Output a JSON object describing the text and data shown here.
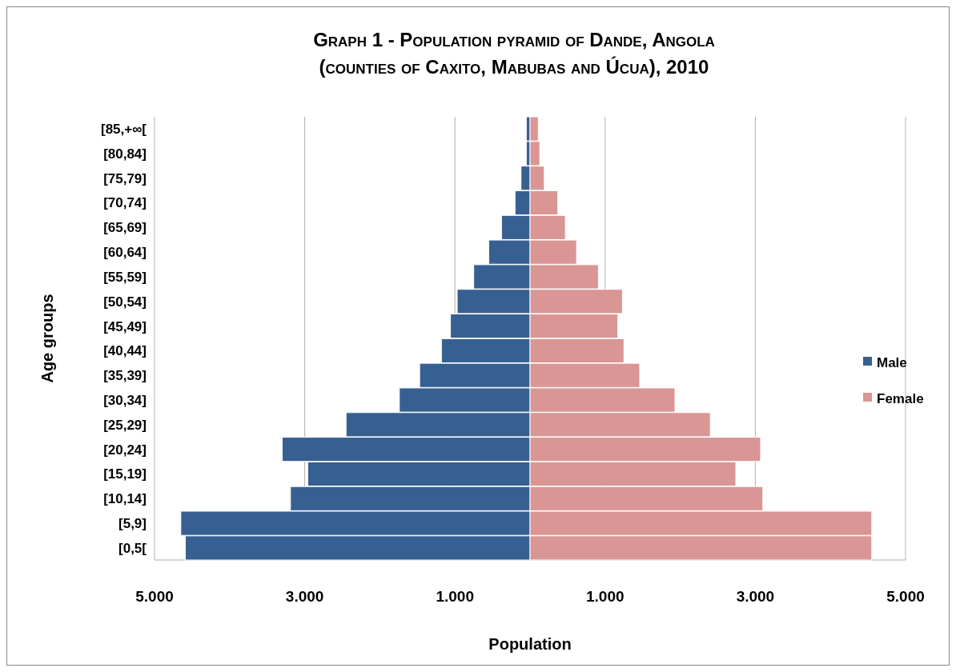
{
  "chart_data": {
    "type": "bar",
    "orientation": "horizontal",
    "stacked": true,
    "title": "Graph 1 - Population pyramid of Dande, Angola\n(counties of Caxito, Mabubas and Úcua), 2010",
    "xlabel": "Population",
    "ylabel": "Age groups",
    "categories": [
      "[85,+∞[",
      "[80,84]",
      "[75,79]",
      "[70,74]",
      "[65,69]",
      "[60,64]",
      "[55,59]",
      "[50,54]",
      "[45,49]",
      "[40,44]",
      "[35,39]",
      "[30,34]",
      "[25,29]",
      "[20,24]",
      "[15,19]",
      "[10,14]",
      "[5,9]",
      "[0,5["
    ],
    "series": [
      {
        "name": "Male",
        "color": "#376092",
        "values": [
          -50,
          -50,
          -120,
          -200,
          -380,
          -550,
          -750,
          -970,
          -1060,
          -1180,
          -1470,
          -1740,
          -2450,
          -3300,
          -2960,
          -3190,
          -4650,
          -4590
        ]
      },
      {
        "name": "Female",
        "color": "#d99694",
        "values": [
          110,
          130,
          190,
          370,
          470,
          620,
          910,
          1230,
          1170,
          1250,
          1460,
          1930,
          2400,
          3070,
          2740,
          3100,
          4550,
          4550
        ]
      }
    ],
    "xlim": [
      -5000,
      5000
    ],
    "xticks": [
      {
        "value": -5000,
        "label": "5.000"
      },
      {
        "value": -3000,
        "label": "3.000"
      },
      {
        "value": -1000,
        "label": "1.000"
      },
      {
        "value": 1000,
        "label": "1.000"
      },
      {
        "value": 3000,
        "label": "3.000"
      },
      {
        "value": 5000,
        "label": "5.000"
      }
    ],
    "grid": "x",
    "legend": "right"
  }
}
